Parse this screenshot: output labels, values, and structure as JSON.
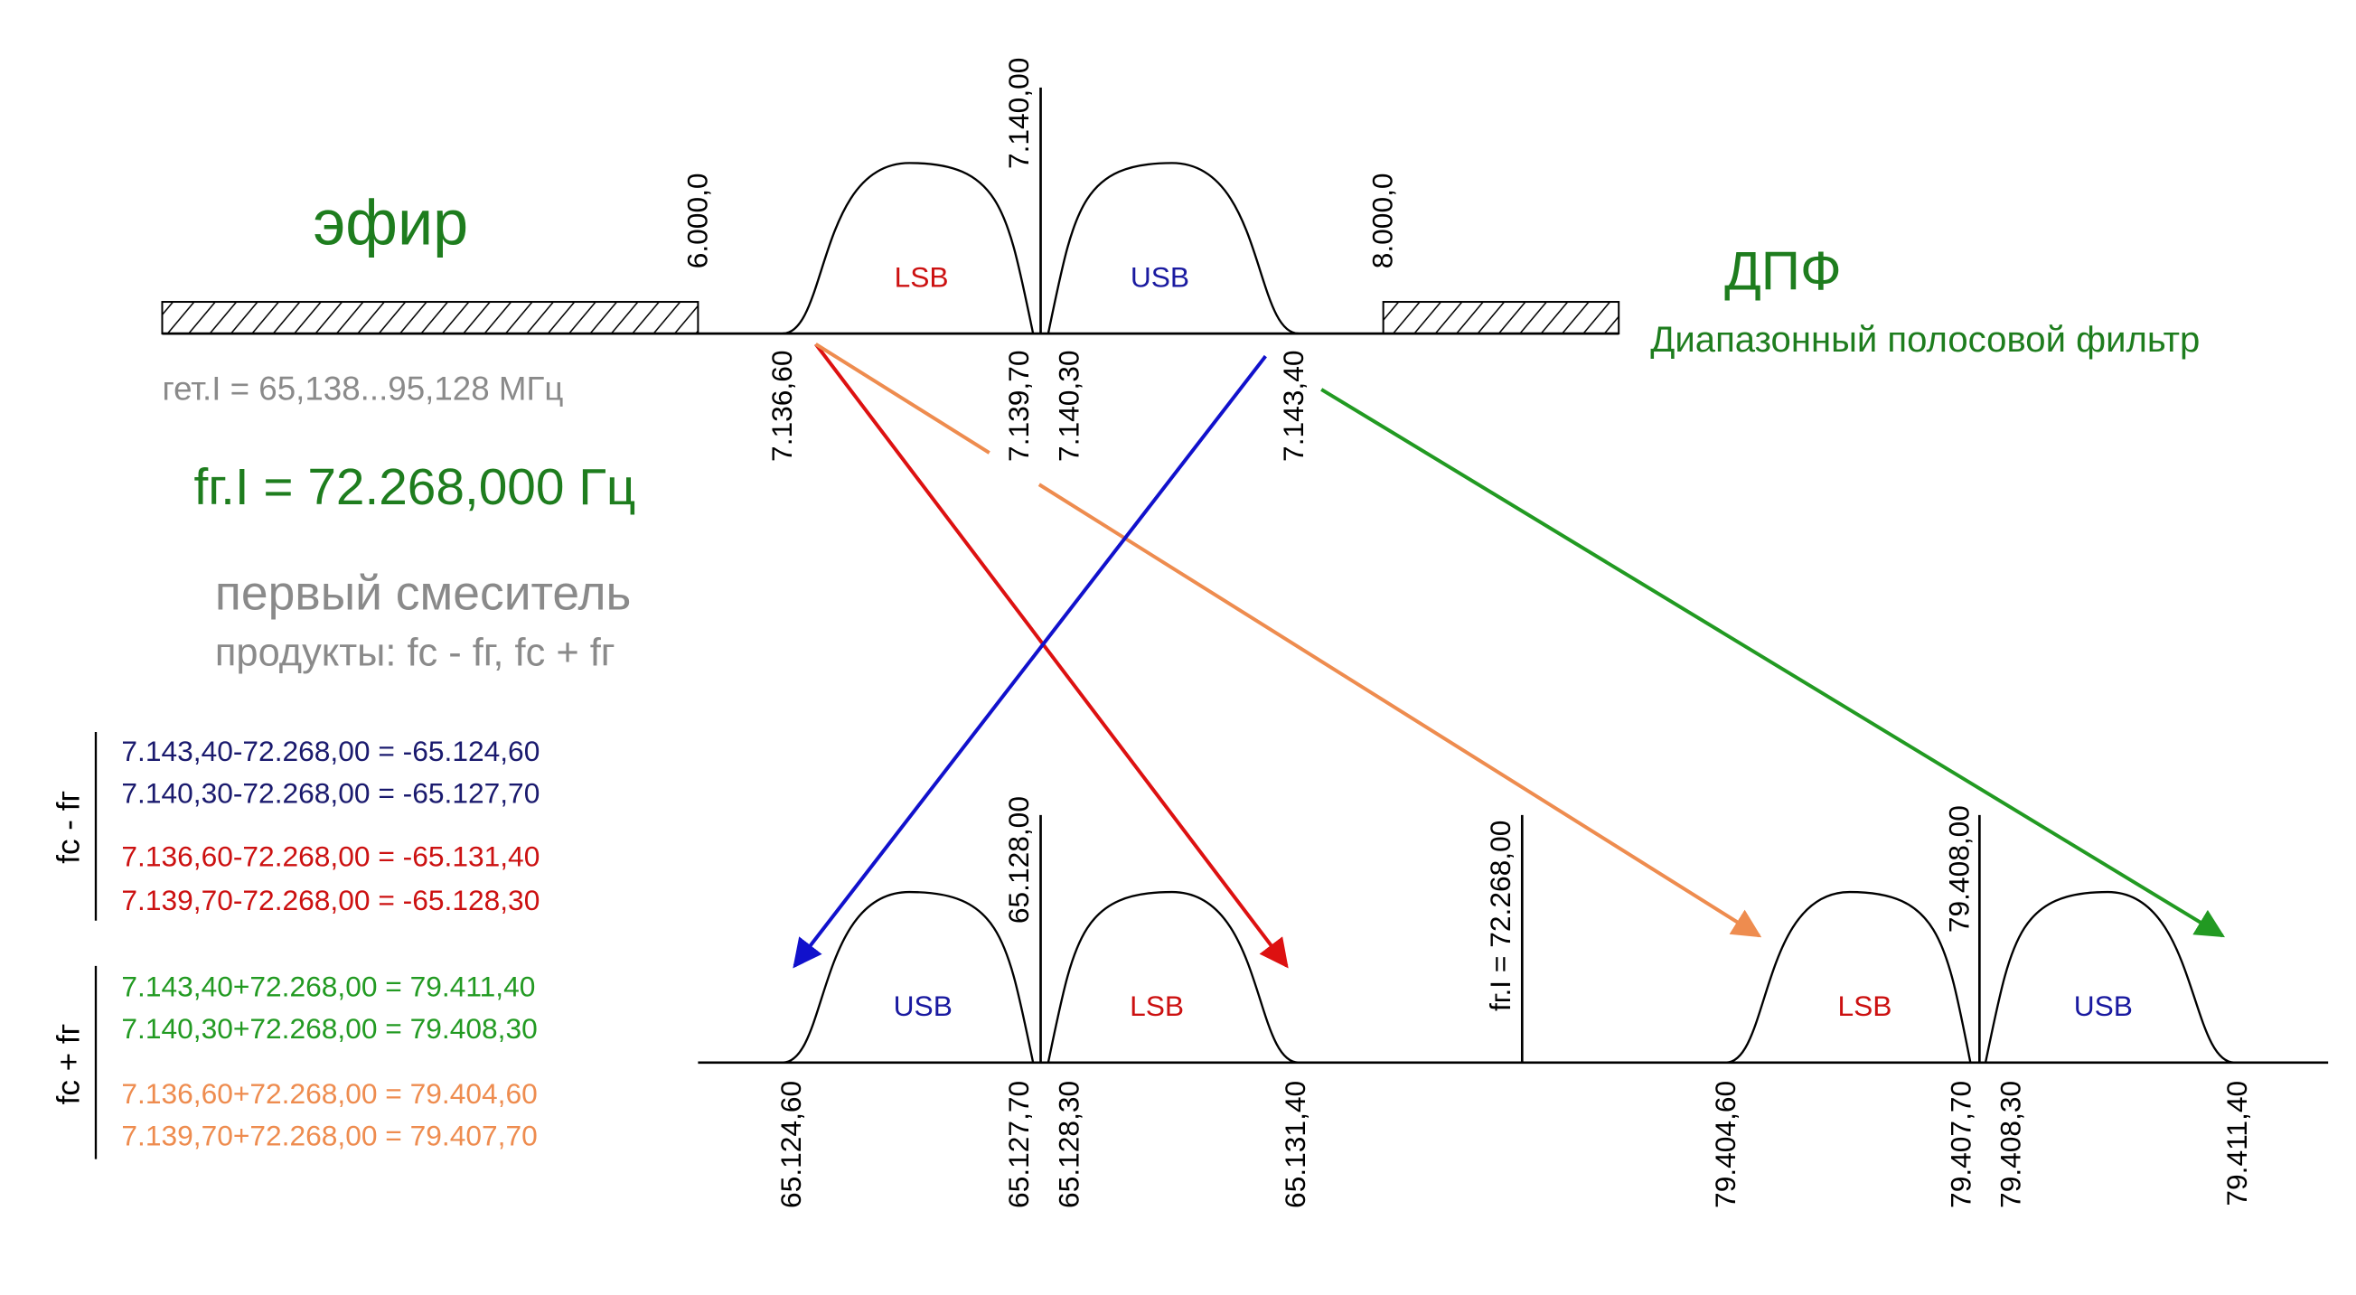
{
  "top": {
    "title": "эфир",
    "filter_title": "ДПФ",
    "filter_subtitle": "Диапазонный полосовой фильтр",
    "left_band_edge": "6.000,0",
    "right_band_edge": "8.000,0",
    "carrier": "7.140,00",
    "lsb": "LSB",
    "usb": "USB",
    "edges": [
      "7.136,60",
      "7.139,70",
      "7.140,30",
      "7.143,40"
    ]
  },
  "heterodyne_range": "гет.I = 65,138...95,128 МГц",
  "lo_frequency": "fг.I = 72.268,000 Гц",
  "mixer": {
    "title": "первый смеситель",
    "products": "продукты: fc - fг, fc + fг"
  },
  "equations": {
    "difference": {
      "label": "fc - fг",
      "lines": [
        "7.143,40-72.268,00 = -65.124,60",
        "7.140,30-72.268,00 = -65.127,70",
        "7.136,60-72.268,00 = -65.131,40",
        "7.139,70-72.268,00 = -65.128,30"
      ]
    },
    "sum": {
      "label": "fc + fг",
      "lines": [
        "7.143,40+72.268,00 = 79.411,40",
        "7.140,30+72.268,00 = 79.408,30",
        "7.136,60+72.268,00 = 79.404,60",
        "7.139,70+72.268,00 = 79.407,70"
      ]
    }
  },
  "bottom": {
    "difference_carrier": "65.128,00",
    "difference_left": "USB",
    "difference_right": "LSB",
    "difference_edges": [
      "65.124,60",
      "65.127,70",
      "65.128,30",
      "65.131,40"
    ],
    "lo_marker": "fг.I = 72.268,00",
    "sum_carrier": "79.408,00",
    "sum_left": "LSB",
    "sum_right": "USB",
    "sum_edges": [
      "79.404,60",
      "79.407,70",
      "79.408,30",
      "79.411,40"
    ]
  }
}
